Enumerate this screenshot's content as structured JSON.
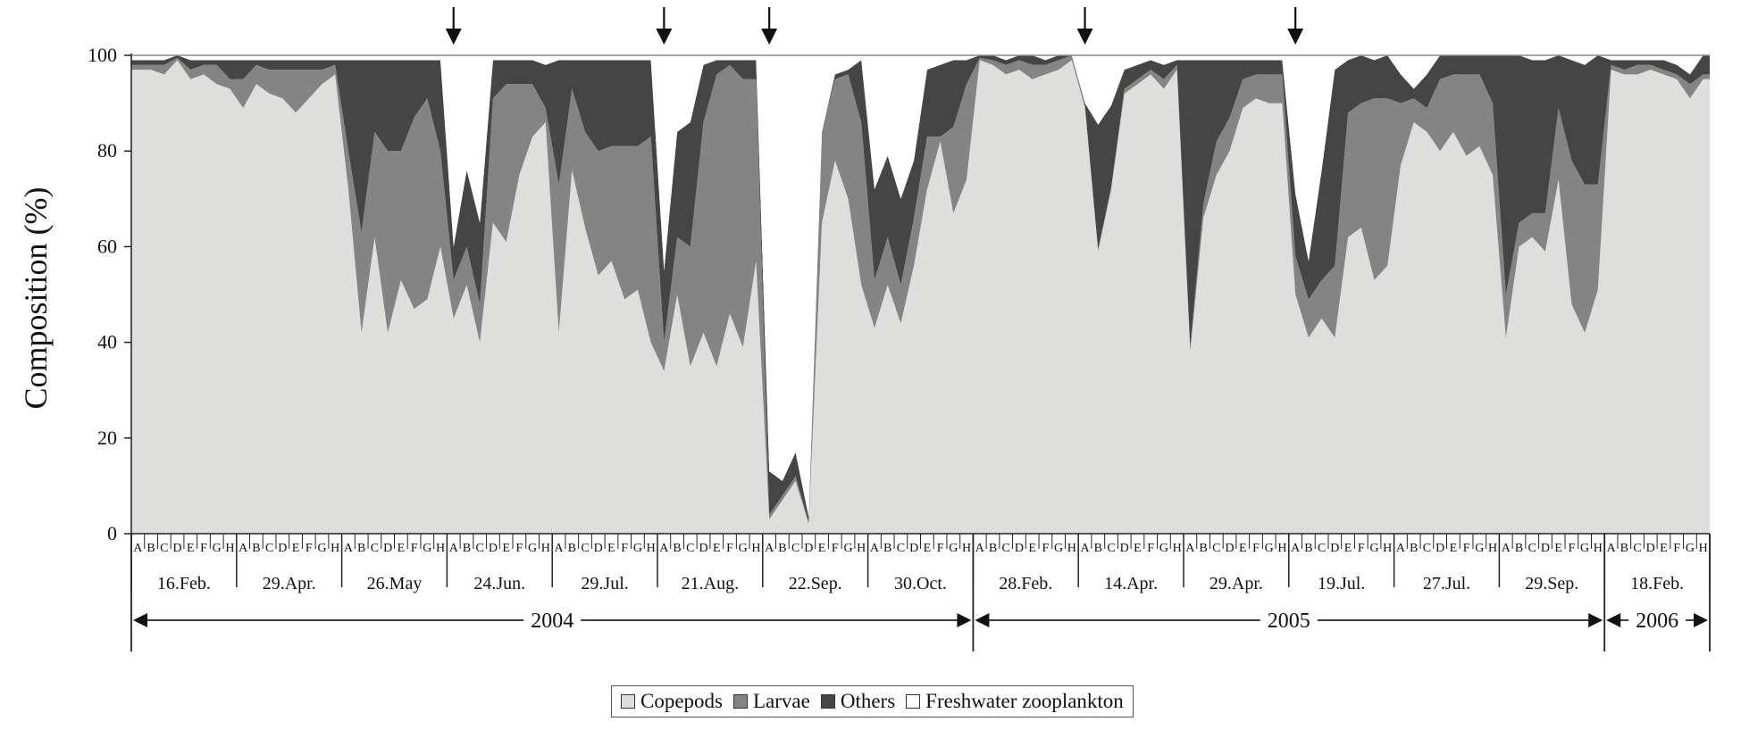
{
  "chart_data": {
    "type": "area",
    "ylabel": "Composition (%)",
    "ylim": [
      0,
      100
    ],
    "yticks": [
      0,
      20,
      40,
      60,
      80,
      100
    ],
    "station_letters": [
      "A",
      "B",
      "C",
      "D",
      "E",
      "F",
      "G",
      "H"
    ],
    "sampling_dates": [
      "16.Feb.",
      "29.Apr.",
      "26.May",
      "24.Jun.",
      "29.Jul.",
      "21.Aug.",
      "22.Sep.",
      "30.Oct.",
      "28.Feb.",
      "14.Apr.",
      "29.Apr.",
      "19.Jul.",
      "27.Jul.",
      "29.Sep.",
      "18.Feb."
    ],
    "years": [
      {
        "label": "2004",
        "start_date_index": 0,
        "end_date_index": 7
      },
      {
        "label": "2005",
        "start_date_index": 8,
        "end_date_index": 13
      },
      {
        "label": "2006",
        "start_date_index": 14,
        "end_date_index": 14
      }
    ],
    "arrow_date_indices": [
      3,
      5,
      6,
      9,
      11
    ],
    "series": [
      {
        "name": "Copepods",
        "color": "#dededc",
        "values": [
          97,
          97,
          96,
          99,
          95,
          96,
          94,
          93,
          89,
          94,
          92,
          91,
          88,
          91,
          94,
          96,
          72,
          42,
          62,
          42,
          53,
          47,
          49,
          60,
          45,
          52,
          40,
          65,
          61,
          75,
          83,
          86,
          42,
          76,
          64,
          54,
          57,
          49,
          51,
          40,
          34,
          50,
          35,
          42,
          35,
          46,
          39,
          57,
          3,
          7,
          11,
          2,
          65,
          78,
          70,
          52,
          43,
          52,
          44,
          56,
          72,
          82,
          67,
          74,
          99,
          98,
          96,
          97,
          95,
          96,
          97,
          99,
          89,
          59,
          72,
          92,
          94,
          96,
          93,
          97,
          38,
          66,
          75,
          80,
          89,
          91,
          90,
          90,
          50,
          41,
          45,
          41,
          62,
          64,
          53,
          56,
          77,
          86,
          84,
          80,
          84,
          79,
          81,
          75,
          41,
          60,
          62,
          59,
          74,
          48,
          42,
          51,
          97,
          96,
          96,
          97,
          96,
          95,
          91,
          95
        ]
      },
      {
        "name": "Larvae",
        "color": "#848484",
        "values": [
          1,
          1,
          2,
          0.5,
          2,
          2,
          4,
          2,
          6,
          4,
          5,
          6,
          9,
          6,
          3,
          2,
          8,
          21,
          22,
          38,
          27,
          40,
          42,
          20,
          8,
          8,
          8,
          26,
          33,
          19,
          11,
          3,
          31,
          17,
          20,
          26,
          24,
          32,
          30,
          43,
          6,
          12,
          25,
          44,
          61,
          52,
          56,
          38,
          1,
          1,
          1,
          0.5,
          19,
          17,
          26,
          34,
          10,
          10,
          8,
          10,
          11,
          1,
          18,
          20,
          0.5,
          1,
          2,
          2,
          3,
          2,
          2,
          1,
          0.5,
          0.5,
          0.5,
          1,
          1,
          1,
          2,
          1,
          1,
          3,
          7,
          7,
          6,
          5,
          6,
          6,
          8,
          8,
          8,
          15,
          26,
          26,
          38,
          35,
          13,
          5,
          5,
          15,
          12,
          17,
          15,
          15,
          9,
          5,
          5,
          8,
          15,
          30,
          31,
          22,
          1,
          1,
          2,
          1,
          1,
          1,
          3,
          1
        ]
      },
      {
        "name": "Others",
        "color": "#454545",
        "values": [
          1,
          1,
          1,
          0.5,
          2,
          1,
          1,
          4,
          4,
          1,
          2,
          2,
          2,
          2,
          2,
          1,
          19,
          36,
          15,
          19,
          19,
          12,
          8,
          19,
          7,
          16,
          17,
          8,
          5,
          5,
          5,
          9,
          26,
          6,
          15,
          19,
          18,
          18,
          18,
          16,
          15,
          22,
          26,
          12,
          3,
          1,
          4,
          4,
          9,
          3,
          5,
          1,
          0,
          1,
          1,
          13,
          19,
          17,
          18,
          12,
          14,
          15,
          14,
          5,
          0.5,
          1,
          1,
          1,
          2,
          1,
          1,
          0,
          0.5,
          26,
          17,
          4,
          3,
          2,
          3,
          1,
          60,
          30,
          17,
          12,
          4,
          3,
          3,
          3,
          13,
          8,
          23,
          41,
          11,
          10,
          8,
          9,
          6,
          2,
          7,
          5,
          4,
          4,
          4,
          10,
          50,
          35,
          32,
          32,
          11,
          21,
          25,
          27,
          1,
          2,
          1,
          1,
          2,
          2,
          2,
          4
        ]
      },
      {
        "name": "Freshwater zooplankton",
        "color": "#ffffff",
        "values": [
          1,
          1,
          1,
          0,
          1,
          1,
          1,
          1,
          1,
          1,
          1,
          1,
          1,
          1,
          1,
          1,
          1,
          1,
          1,
          1,
          1,
          1,
          1,
          1,
          40,
          24,
          35,
          1,
          1,
          1,
          1,
          2,
          1,
          1,
          1,
          1,
          1,
          1,
          1,
          1,
          45,
          16,
          14,
          2,
          1,
          1,
          1,
          1,
          87,
          89,
          83,
          96.5,
          16,
          4,
          3,
          1,
          28,
          21,
          30,
          22,
          3,
          2,
          1,
          1,
          0,
          0,
          1,
          0,
          0,
          1,
          0,
          0,
          10,
          14,
          10,
          3,
          2,
          1,
          2,
          1,
          1,
          1,
          1,
          1,
          1,
          1,
          1,
          1,
          29,
          43,
          24,
          3,
          1,
          0,
          1,
          0,
          4,
          7,
          4,
          0,
          0,
          0,
          0,
          0,
          0,
          0,
          1,
          1,
          0,
          1,
          2,
          0,
          1,
          1,
          1,
          1,
          1,
          2,
          4,
          0
        ]
      }
    ]
  }
}
